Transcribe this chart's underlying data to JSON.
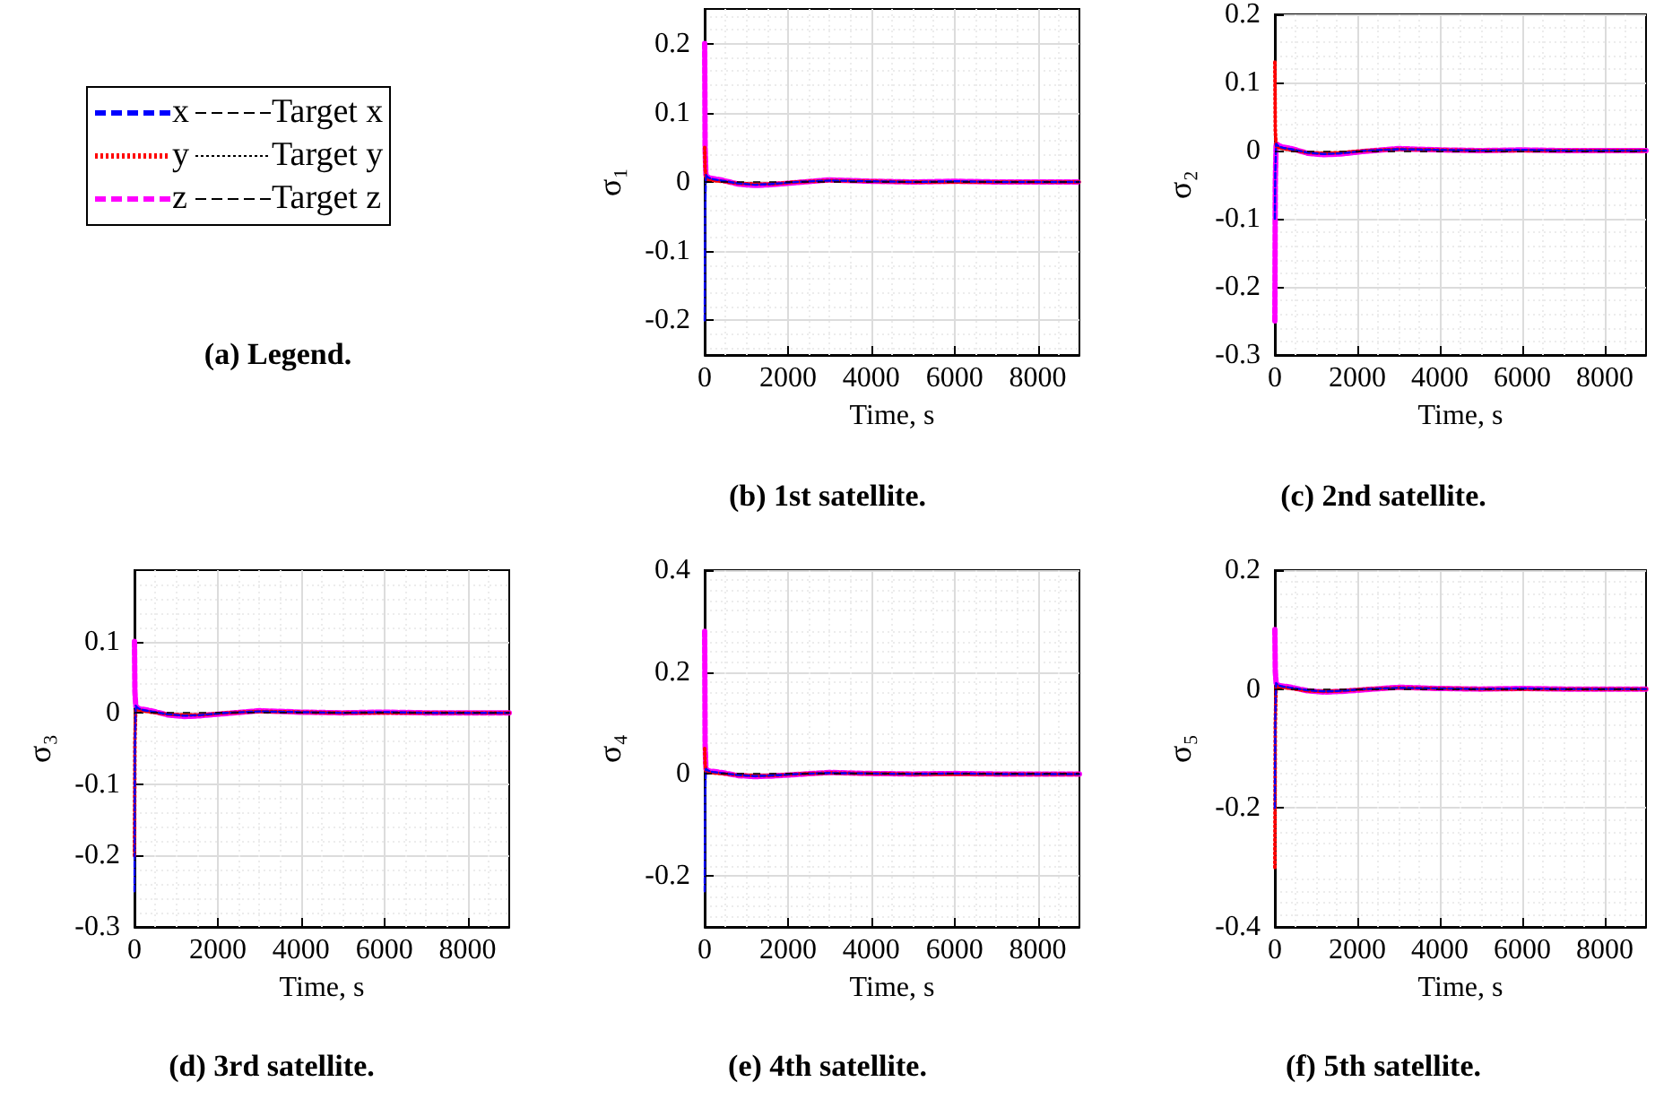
{
  "chart_data": [
    {
      "type": "other",
      "title": "(a) Legend.",
      "legend": "top",
      "series": [
        {
          "name": "x",
          "color": "#0000ff",
          "line_style": "dashed"
        },
        {
          "name": "y",
          "color": "#ff0000",
          "line_style": "dotted"
        },
        {
          "name": "z",
          "color": "#ff00ff",
          "line_style": "dashed"
        },
        {
          "name": "Target x",
          "color": "#000000",
          "line_style": "dashed"
        },
        {
          "name": "Target y",
          "color": "#000000",
          "line_style": "dotted"
        },
        {
          "name": "Target z",
          "color": "#000000",
          "line_style": "dashed"
        }
      ]
    },
    {
      "type": "line",
      "title": "(b) 1st satellite.",
      "xlabel": "Time, s",
      "ylabel": "σ₁",
      "grid": true,
      "legend": false,
      "xlim": [
        0,
        9000
      ],
      "xticks": [
        0,
        2000,
        4000,
        6000,
        8000
      ],
      "ylim": [
        -0.25,
        0.25
      ],
      "yticks": [
        -0.2,
        -0.1,
        0,
        0.1,
        0.2
      ],
      "ref_lines": [
        {
          "axis": "y",
          "value": 0,
          "color": "#000000",
          "line_style": "dashed"
        }
      ],
      "x": [
        0,
        10,
        30,
        60,
        100,
        200,
        400,
        800,
        1200,
        1600,
        2200,
        3000,
        4000,
        5000,
        6000,
        7000,
        8000,
        9000
      ],
      "series": [
        {
          "color": "#0000ff",
          "line_style": "dashed",
          "values": [
            -0.2,
            -0.05,
            0.01,
            0.008,
            0.006,
            0.004,
            0.002,
            -0.002,
            -0.004,
            -0.003,
            0,
            0.002,
            0.001,
            0,
            0.001,
            0,
            0,
            0
          ]
        },
        {
          "color": "#ff0000",
          "line_style": "dotted",
          "values": [
            0.05,
            0.02,
            0.005,
            0.004,
            0.003,
            0.002,
            0.001,
            -0.002,
            -0.003,
            -0.003,
            0,
            0.002,
            0.001,
            0,
            0,
            0,
            0,
            0
          ]
        },
        {
          "color": "#ff00ff",
          "line_style": "dashed",
          "values": [
            0.2,
            0.05,
            0.01,
            0.008,
            0.006,
            0.005,
            0.003,
            -0.003,
            -0.005,
            -0.004,
            -0.001,
            0.003,
            0.001,
            0,
            0.001,
            0,
            0,
            0
          ]
        }
      ]
    },
    {
      "type": "line",
      "title": "(c) 2nd satellite.",
      "xlabel": "Time, s",
      "ylabel": "σ₂",
      "grid": true,
      "legend": false,
      "xlim": [
        0,
        9000
      ],
      "xticks": [
        0,
        2000,
        4000,
        6000,
        8000
      ],
      "ylim": [
        -0.3,
        0.2
      ],
      "yticks": [
        -0.3,
        -0.2,
        -0.1,
        0,
        0.1,
        0.2
      ],
      "ref_lines": [
        {
          "axis": "y",
          "value": 0,
          "color": "#000000",
          "line_style": "dashed"
        }
      ],
      "x": [
        0,
        10,
        30,
        60,
        100,
        200,
        400,
        800,
        1200,
        1600,
        2200,
        3000,
        4000,
        5000,
        6000,
        7000,
        8000,
        9000
      ],
      "series": [
        {
          "color": "#0000ff",
          "line_style": "dashed",
          "values": [
            -0.1,
            -0.03,
            0.01,
            0.008,
            0.006,
            0.004,
            0.002,
            -0.003,
            -0.005,
            -0.004,
            0,
            0.002,
            0.001,
            0,
            0.001,
            0,
            0,
            0
          ]
        },
        {
          "color": "#ff0000",
          "line_style": "dotted",
          "values": [
            0.13,
            0.03,
            0.006,
            0.005,
            0.004,
            0.003,
            0.001,
            -0.003,
            -0.004,
            -0.003,
            0,
            0.002,
            0.001,
            0,
            0,
            0,
            0,
            0
          ]
        },
        {
          "color": "#ff00ff",
          "line_style": "dashed",
          "values": [
            -0.25,
            -0.05,
            0.01,
            0.009,
            0.007,
            0.005,
            0.003,
            -0.004,
            -0.006,
            -0.005,
            -0.001,
            0.003,
            0.001,
            0,
            0.001,
            0,
            0,
            0
          ]
        }
      ]
    },
    {
      "type": "line",
      "title": "(d) 3rd satellite.",
      "xlabel": "Time, s",
      "ylabel": "σ₃",
      "grid": true,
      "legend": false,
      "xlim": [
        0,
        9000
      ],
      "xticks": [
        0,
        2000,
        4000,
        6000,
        8000
      ],
      "ylim": [
        -0.3,
        0.2
      ],
      "yticks": [
        -0.3,
        -0.2,
        -0.1,
        0,
        0.1
      ],
      "ref_lines": [
        {
          "axis": "y",
          "value": 0,
          "color": "#000000",
          "line_style": "dashed"
        }
      ],
      "x": [
        0,
        10,
        30,
        60,
        100,
        200,
        400,
        800,
        1200,
        1600,
        2200,
        3000,
        4000,
        5000,
        6000,
        7000,
        8000,
        9000
      ],
      "series": [
        {
          "color": "#0000ff",
          "line_style": "dashed",
          "values": [
            -0.25,
            -0.05,
            0.01,
            0.008,
            0.006,
            0.004,
            0.002,
            -0.002,
            -0.004,
            -0.003,
            0,
            0.002,
            0.001,
            0,
            0.001,
            0,
            0,
            0
          ]
        },
        {
          "color": "#ff0000",
          "line_style": "dotted",
          "values": [
            -0.2,
            -0.04,
            0.006,
            0.005,
            0.004,
            0.003,
            0.001,
            -0.002,
            -0.003,
            -0.003,
            0,
            0.002,
            0.001,
            0,
            0,
            0,
            0,
            0
          ]
        },
        {
          "color": "#ff00ff",
          "line_style": "dashed",
          "values": [
            0.1,
            0.03,
            0.01,
            0.008,
            0.006,
            0.005,
            0.003,
            -0.003,
            -0.005,
            -0.004,
            -0.001,
            0.003,
            0.001,
            0,
            0.001,
            0,
            0,
            0
          ]
        }
      ]
    },
    {
      "type": "line",
      "title": "(e) 4th satellite.",
      "xlabel": "Time, s",
      "ylabel": "σ₄",
      "grid": true,
      "legend": false,
      "xlim": [
        0,
        9000
      ],
      "xticks": [
        0,
        2000,
        4000,
        6000,
        8000
      ],
      "ylim": [
        -0.3,
        0.4
      ],
      "yticks": [
        -0.2,
        0,
        0.2,
        0.4
      ],
      "ref_lines": [
        {
          "axis": "y",
          "value": 0,
          "color": "#000000",
          "line_style": "dashed"
        }
      ],
      "x": [
        0,
        10,
        30,
        60,
        100,
        200,
        400,
        800,
        1200,
        1600,
        2200,
        3000,
        4000,
        5000,
        6000,
        7000,
        8000,
        9000
      ],
      "series": [
        {
          "color": "#0000ff",
          "line_style": "dashed",
          "values": [
            -0.23,
            -0.05,
            0.01,
            0.008,
            0.006,
            0.004,
            0.002,
            -0.002,
            -0.004,
            -0.003,
            0,
            0.002,
            0.001,
            0,
            0.001,
            0,
            0,
            0
          ]
        },
        {
          "color": "#ff0000",
          "line_style": "dotted",
          "values": [
            0.05,
            0.02,
            0.005,
            0.004,
            0.003,
            0.002,
            0.001,
            -0.002,
            -0.003,
            -0.003,
            0,
            0.002,
            0.001,
            0,
            0,
            0,
            0,
            0
          ]
        },
        {
          "color": "#ff00ff",
          "line_style": "dashed",
          "values": [
            0.28,
            0.06,
            0.01,
            0.008,
            0.006,
            0.005,
            0.003,
            -0.003,
            -0.005,
            -0.004,
            -0.001,
            0.003,
            0.001,
            0,
            0.001,
            0,
            0,
            0
          ]
        }
      ]
    },
    {
      "type": "line",
      "title": "(f) 5th satellite.",
      "xlabel": "Time, s",
      "ylabel": "σ₅",
      "grid": true,
      "legend": false,
      "xlim": [
        0,
        9000
      ],
      "xticks": [
        0,
        2000,
        4000,
        6000,
        8000
      ],
      "ylim": [
        -0.4,
        0.2
      ],
      "yticks": [
        -0.4,
        -0.2,
        0,
        0.2
      ],
      "ref_lines": [
        {
          "axis": "y",
          "value": 0,
          "color": "#000000",
          "line_style": "dashed"
        }
      ],
      "x": [
        0,
        10,
        30,
        60,
        100,
        200,
        400,
        800,
        1200,
        1600,
        2200,
        3000,
        4000,
        5000,
        6000,
        7000,
        8000,
        9000
      ],
      "series": [
        {
          "color": "#0000ff",
          "line_style": "dashed",
          "values": [
            -0.2,
            -0.05,
            0.01,
            0.008,
            0.006,
            0.004,
            0.002,
            -0.002,
            -0.004,
            -0.003,
            0,
            0.002,
            0.001,
            0,
            0.001,
            0,
            0,
            0
          ]
        },
        {
          "color": "#ff0000",
          "line_style": "dotted",
          "values": [
            -0.3,
            -0.06,
            0.006,
            0.005,
            0.004,
            0.003,
            0.001,
            -0.003,
            -0.004,
            -0.003,
            0,
            0.002,
            0.001,
            0,
            0,
            0,
            0,
            0
          ]
        },
        {
          "color": "#ff00ff",
          "line_style": "dashed",
          "values": [
            0.1,
            0.03,
            0.01,
            0.008,
            0.006,
            0.005,
            0.003,
            -0.003,
            -0.005,
            -0.004,
            -0.001,
            0.003,
            0.001,
            0,
            0.001,
            0,
            0,
            0
          ]
        }
      ]
    }
  ]
}
